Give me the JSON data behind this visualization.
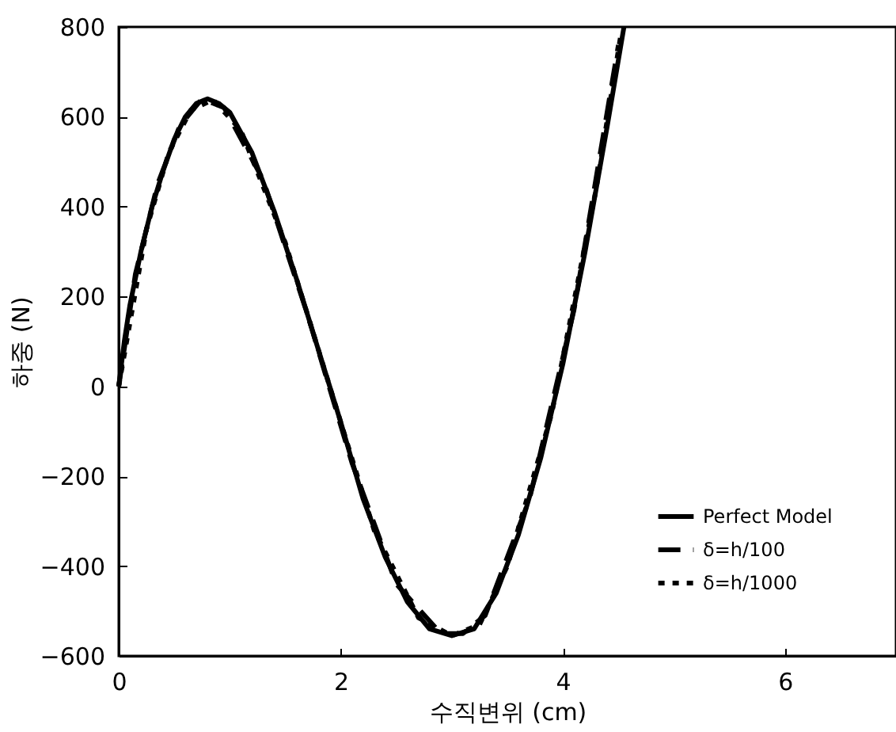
{
  "chart_data": {
    "type": "line",
    "xlabel": "수직변위 (cm)",
    "ylabel": "하중 (N)",
    "x": [
      0,
      0.05,
      0.1,
      0.2,
      0.3,
      0.4,
      0.5,
      0.6,
      0.7,
      0.8,
      0.9,
      1.0,
      1.2,
      1.4,
      1.6,
      1.8,
      2.0,
      2.2,
      2.4,
      2.6,
      2.8,
      3.0,
      3.2,
      3.4,
      3.6,
      3.8,
      4.0,
      4.2,
      4.4,
      4.55
    ],
    "series": [
      {
        "name": "Perfect Model",
        "color": "#000000",
        "line_style": "solid",
        "values": [
          0,
          100,
          180,
          300,
          400,
          480,
          550,
          600,
          630,
          640,
          630,
          610,
          520,
          390,
          240,
          80,
          -80,
          -250,
          -380,
          -480,
          -540,
          -555,
          -540,
          -460,
          -330,
          -160,
          50,
          300,
          580,
          800
        ]
      },
      {
        "name": "δ=h/100",
        "color": "#000000",
        "line_style": "dashed",
        "x": [
          0,
          0.15,
          0.35,
          0.55,
          0.75,
          0.95,
          1.3,
          1.7,
          2.1,
          2.5,
          2.9,
          3.1,
          3.3,
          3.7,
          4.1,
          4.5
        ],
        "values": [
          0,
          250,
          450,
          580,
          640,
          620,
          460,
          160,
          -170,
          -440,
          -550,
          -550,
          -510,
          -250,
          170,
          760
        ]
      },
      {
        "name": "δ=h/1000",
        "color": "#000000",
        "line_style": "dotted",
        "x": [
          0,
          0.25,
          0.45,
          0.65,
          0.85,
          1.1,
          1.5,
          1.9,
          2.3,
          2.7,
          3.0,
          3.25,
          3.5,
          3.9,
          4.3,
          4.52
        ],
        "values": [
          0,
          350,
          520,
          615,
          638,
          570,
          320,
          0,
          -320,
          -515,
          -555,
          -530,
          -400,
          -60,
          440,
          780
        ]
      }
    ],
    "xlim": [
      0,
      7
    ],
    "xticks": [
      0,
      2,
      4,
      6
    ],
    "ylim": [
      -600,
      800
    ],
    "yticks": [
      -600,
      -400,
      -200,
      0,
      200,
      400,
      600,
      800
    ],
    "grid": false,
    "legend": "bottom right",
    "marker": "none"
  }
}
